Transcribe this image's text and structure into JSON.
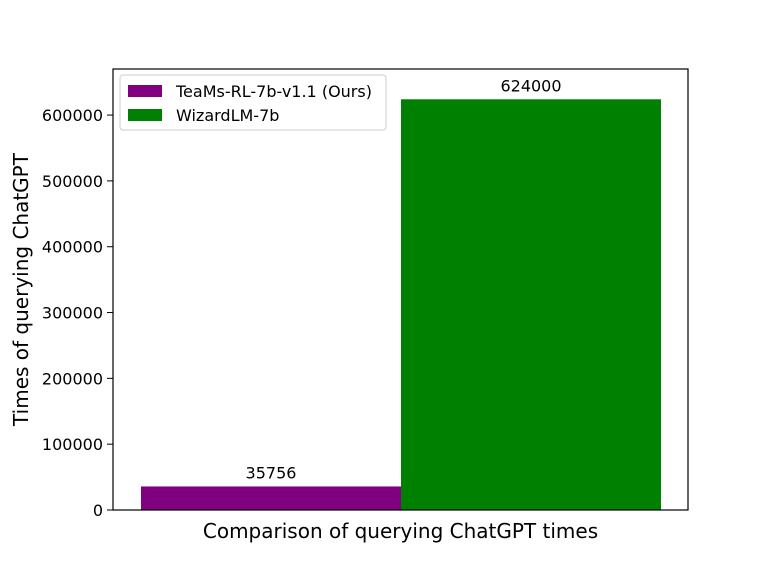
{
  "chart_data": {
    "type": "bar",
    "title": "",
    "xlabel": "Comparison of querying ChatGPT times",
    "ylabel": "Times of querying ChatGPT",
    "ylim": [
      0,
      670000
    ],
    "yticks": [
      0,
      100000,
      200000,
      300000,
      400000,
      500000,
      600000
    ],
    "grid": false,
    "legend_position": "top-left",
    "series": [
      {
        "name": "TeaMs-RL-7b-v1.1 (Ours)",
        "value": 35756,
        "label": "35756",
        "color": "#800080"
      },
      {
        "name": "WizardLM-7b",
        "value": 624000,
        "label": "624000",
        "color": "#008000"
      }
    ]
  }
}
